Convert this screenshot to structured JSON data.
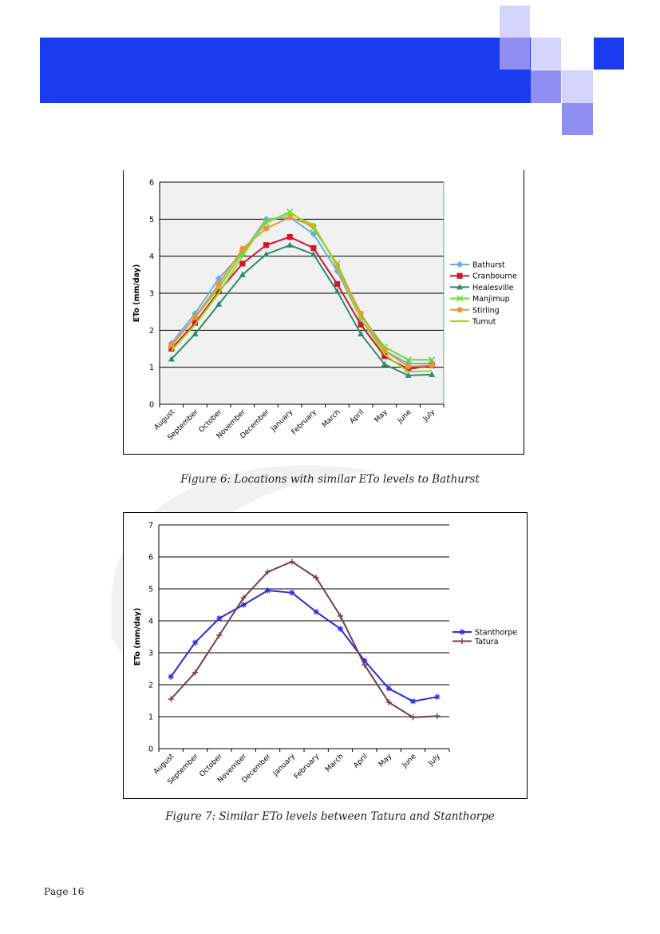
{
  "page": {
    "number_label": "Page 16"
  },
  "header": {
    "band_color": "#1a3cf0"
  },
  "figures": [
    {
      "caption": "Figure 6: Locations with similar ETo levels to Bathurst"
    },
    {
      "caption": "Figure 7: Similar ETo levels between Tatura and Stanthorpe"
    }
  ],
  "chart_data": [
    {
      "type": "line",
      "title": "",
      "xlabel": "",
      "ylabel": "ETo (mm/day)",
      "ylim": [
        0,
        6
      ],
      "yticks": [
        0,
        1,
        2,
        3,
        4,
        5,
        6
      ],
      "grid": true,
      "legend_position": "right",
      "categories": [
        "August",
        "September",
        "October",
        "November",
        "December",
        "January",
        "February",
        "March",
        "April",
        "May",
        "June",
        "July"
      ],
      "series": [
        {
          "name": "Bathurst",
          "color": "#6aaee8",
          "marker": "diamond",
          "values": [
            1.65,
            2.45,
            3.4,
            4.1,
            5.0,
            5.05,
            4.6,
            3.6,
            2.3,
            1.45,
            1.1,
            1.1
          ]
        },
        {
          "name": "Cranbourne",
          "color": "#d0182a",
          "marker": "square",
          "values": [
            1.5,
            2.2,
            3.05,
            3.8,
            4.3,
            4.52,
            4.22,
            3.25,
            2.15,
            1.3,
            0.95,
            1.05
          ]
        },
        {
          "name": "Healesville",
          "color": "#2e8b6e",
          "marker": "triangle",
          "values": [
            1.22,
            1.9,
            2.7,
            3.5,
            4.05,
            4.3,
            4.05,
            3.05,
            1.9,
            1.08,
            0.78,
            0.8
          ]
        },
        {
          "name": "Manjimup",
          "color": "#66dd33",
          "marker": "x",
          "values": [
            1.58,
            2.35,
            3.15,
            4.1,
            4.9,
            5.2,
            4.75,
            3.8,
            2.4,
            1.55,
            1.2,
            1.2
          ]
        },
        {
          "name": "Stirling",
          "color": "#f0923a",
          "marker": "circle",
          "values": [
            1.6,
            2.35,
            3.25,
            4.2,
            4.75,
            5.05,
            4.82,
            3.75,
            2.45,
            1.45,
            1.02,
            1.05
          ]
        },
        {
          "name": "Tumut",
          "color": "#9ad920",
          "marker": "none",
          "values": [
            1.45,
            2.15,
            3.0,
            4.0,
            4.95,
            5.15,
            4.85,
            3.7,
            2.3,
            1.35,
            0.88,
            0.9
          ]
        }
      ]
    },
    {
      "type": "line",
      "title": "",
      "xlabel": "",
      "ylabel": "ETo (mm/day)",
      "ylim": [
        0,
        7
      ],
      "yticks": [
        0,
        1,
        2,
        3,
        4,
        5,
        6,
        7
      ],
      "grid": true,
      "legend_position": "right",
      "categories": [
        "August",
        "September",
        "October",
        "November",
        "December",
        "January",
        "February",
        "March",
        "April",
        "May",
        "June",
        "July"
      ],
      "series": [
        {
          "name": "Stanthorpe",
          "color": "#2b2be0",
          "marker": "asterisk",
          "values": [
            2.25,
            3.32,
            4.08,
            4.5,
            4.95,
            4.88,
            4.28,
            3.75,
            2.75,
            1.88,
            1.48,
            1.62
          ]
        },
        {
          "name": "Tatura",
          "color": "#7a3a50",
          "marker": "plus",
          "values": [
            1.55,
            2.38,
            3.55,
            4.72,
            5.53,
            5.85,
            5.35,
            4.15,
            2.62,
            1.45,
            0.98,
            1.02
          ]
        }
      ]
    }
  ]
}
